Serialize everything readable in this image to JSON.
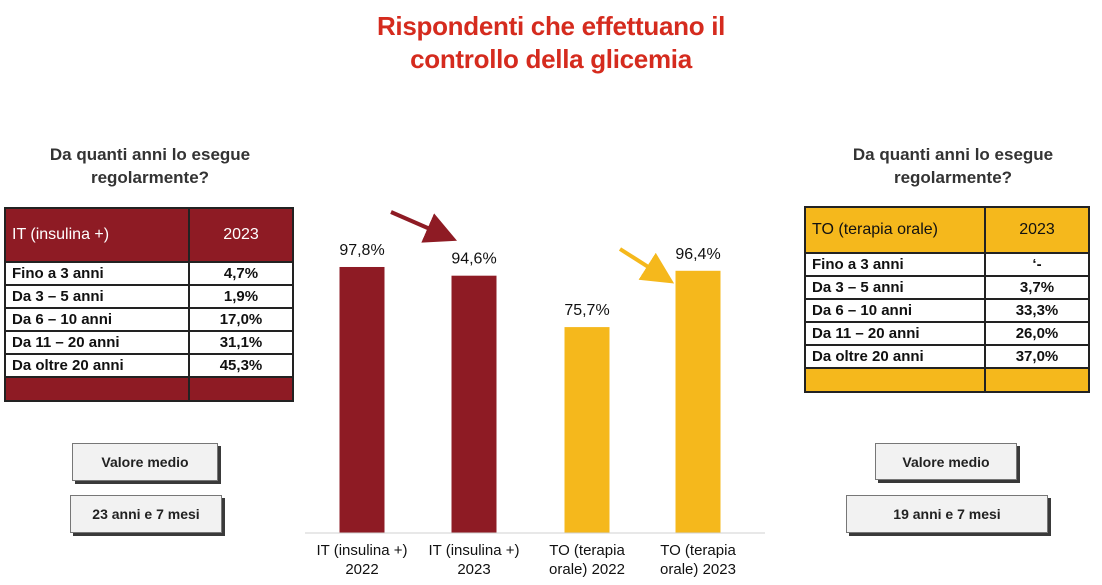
{
  "title": {
    "line1": "Rispondenti che effettuano il",
    "line2": "controllo della glicemia"
  },
  "left_panel": {
    "question_line1": "Da quanti anni lo esegue",
    "question_line2": "regolarmente?",
    "header": [
      "IT  (insulina +)",
      "2023"
    ],
    "rows": [
      [
        "Fino a 3 anni",
        "4,7%"
      ],
      [
        "Da 3 – 5 anni",
        "1,9%"
      ],
      [
        "Da 6 – 10 anni",
        "17,0%"
      ],
      [
        "Da 11 – 20 anni",
        "31,1%"
      ],
      [
        "Da oltre 20 anni",
        "45,3%"
      ]
    ],
    "average_label": "Valore medio",
    "average_value": "23 anni e 7 mesi",
    "color": "#8e1b24"
  },
  "right_panel": {
    "question_line1": "Da quanti anni lo esegue",
    "question_line2": "regolarmente?",
    "header": [
      "TO (terapia orale)",
      "2023"
    ],
    "rows": [
      [
        "Fino a 3 anni",
        "‘-"
      ],
      [
        "Da 3 – 5 anni",
        "3,7%"
      ],
      [
        "Da 6 – 10 anni",
        "33,3%"
      ],
      [
        "Da 11 – 20 anni",
        "26,0%"
      ],
      [
        "Da oltre 20 anni",
        "37,0%"
      ]
    ],
    "average_label": "Valore medio",
    "average_value": "19 anni e 7 mesi",
    "color": "#f5b81c"
  },
  "chart_data": {
    "type": "bar",
    "categories": [
      [
        "IT (insulina +)",
        "2022"
      ],
      [
        "IT (insulina +)",
        "2023"
      ],
      [
        "TO (terapia",
        "orale) 2022"
      ],
      [
        "TO (terapia",
        "orale) 2023"
      ]
    ],
    "values": [
      97.8,
      94.6,
      75.7,
      96.4
    ],
    "value_labels": [
      "97,8%",
      "94,6%",
      "75,7%",
      "96,4%"
    ],
    "colors": [
      "#8e1b24",
      "#8e1b24",
      "#f5b81c",
      "#f5b81c"
    ],
    "ylim": [
      0,
      100
    ],
    "grid": false,
    "annotations": [
      {
        "type": "arrow",
        "color": "#8e1b24",
        "points_to": "IT (insulina +) 2023"
      },
      {
        "type": "arrow",
        "color": "#f5b81c",
        "points_to": "TO (terapia orale) 2023"
      }
    ]
  }
}
